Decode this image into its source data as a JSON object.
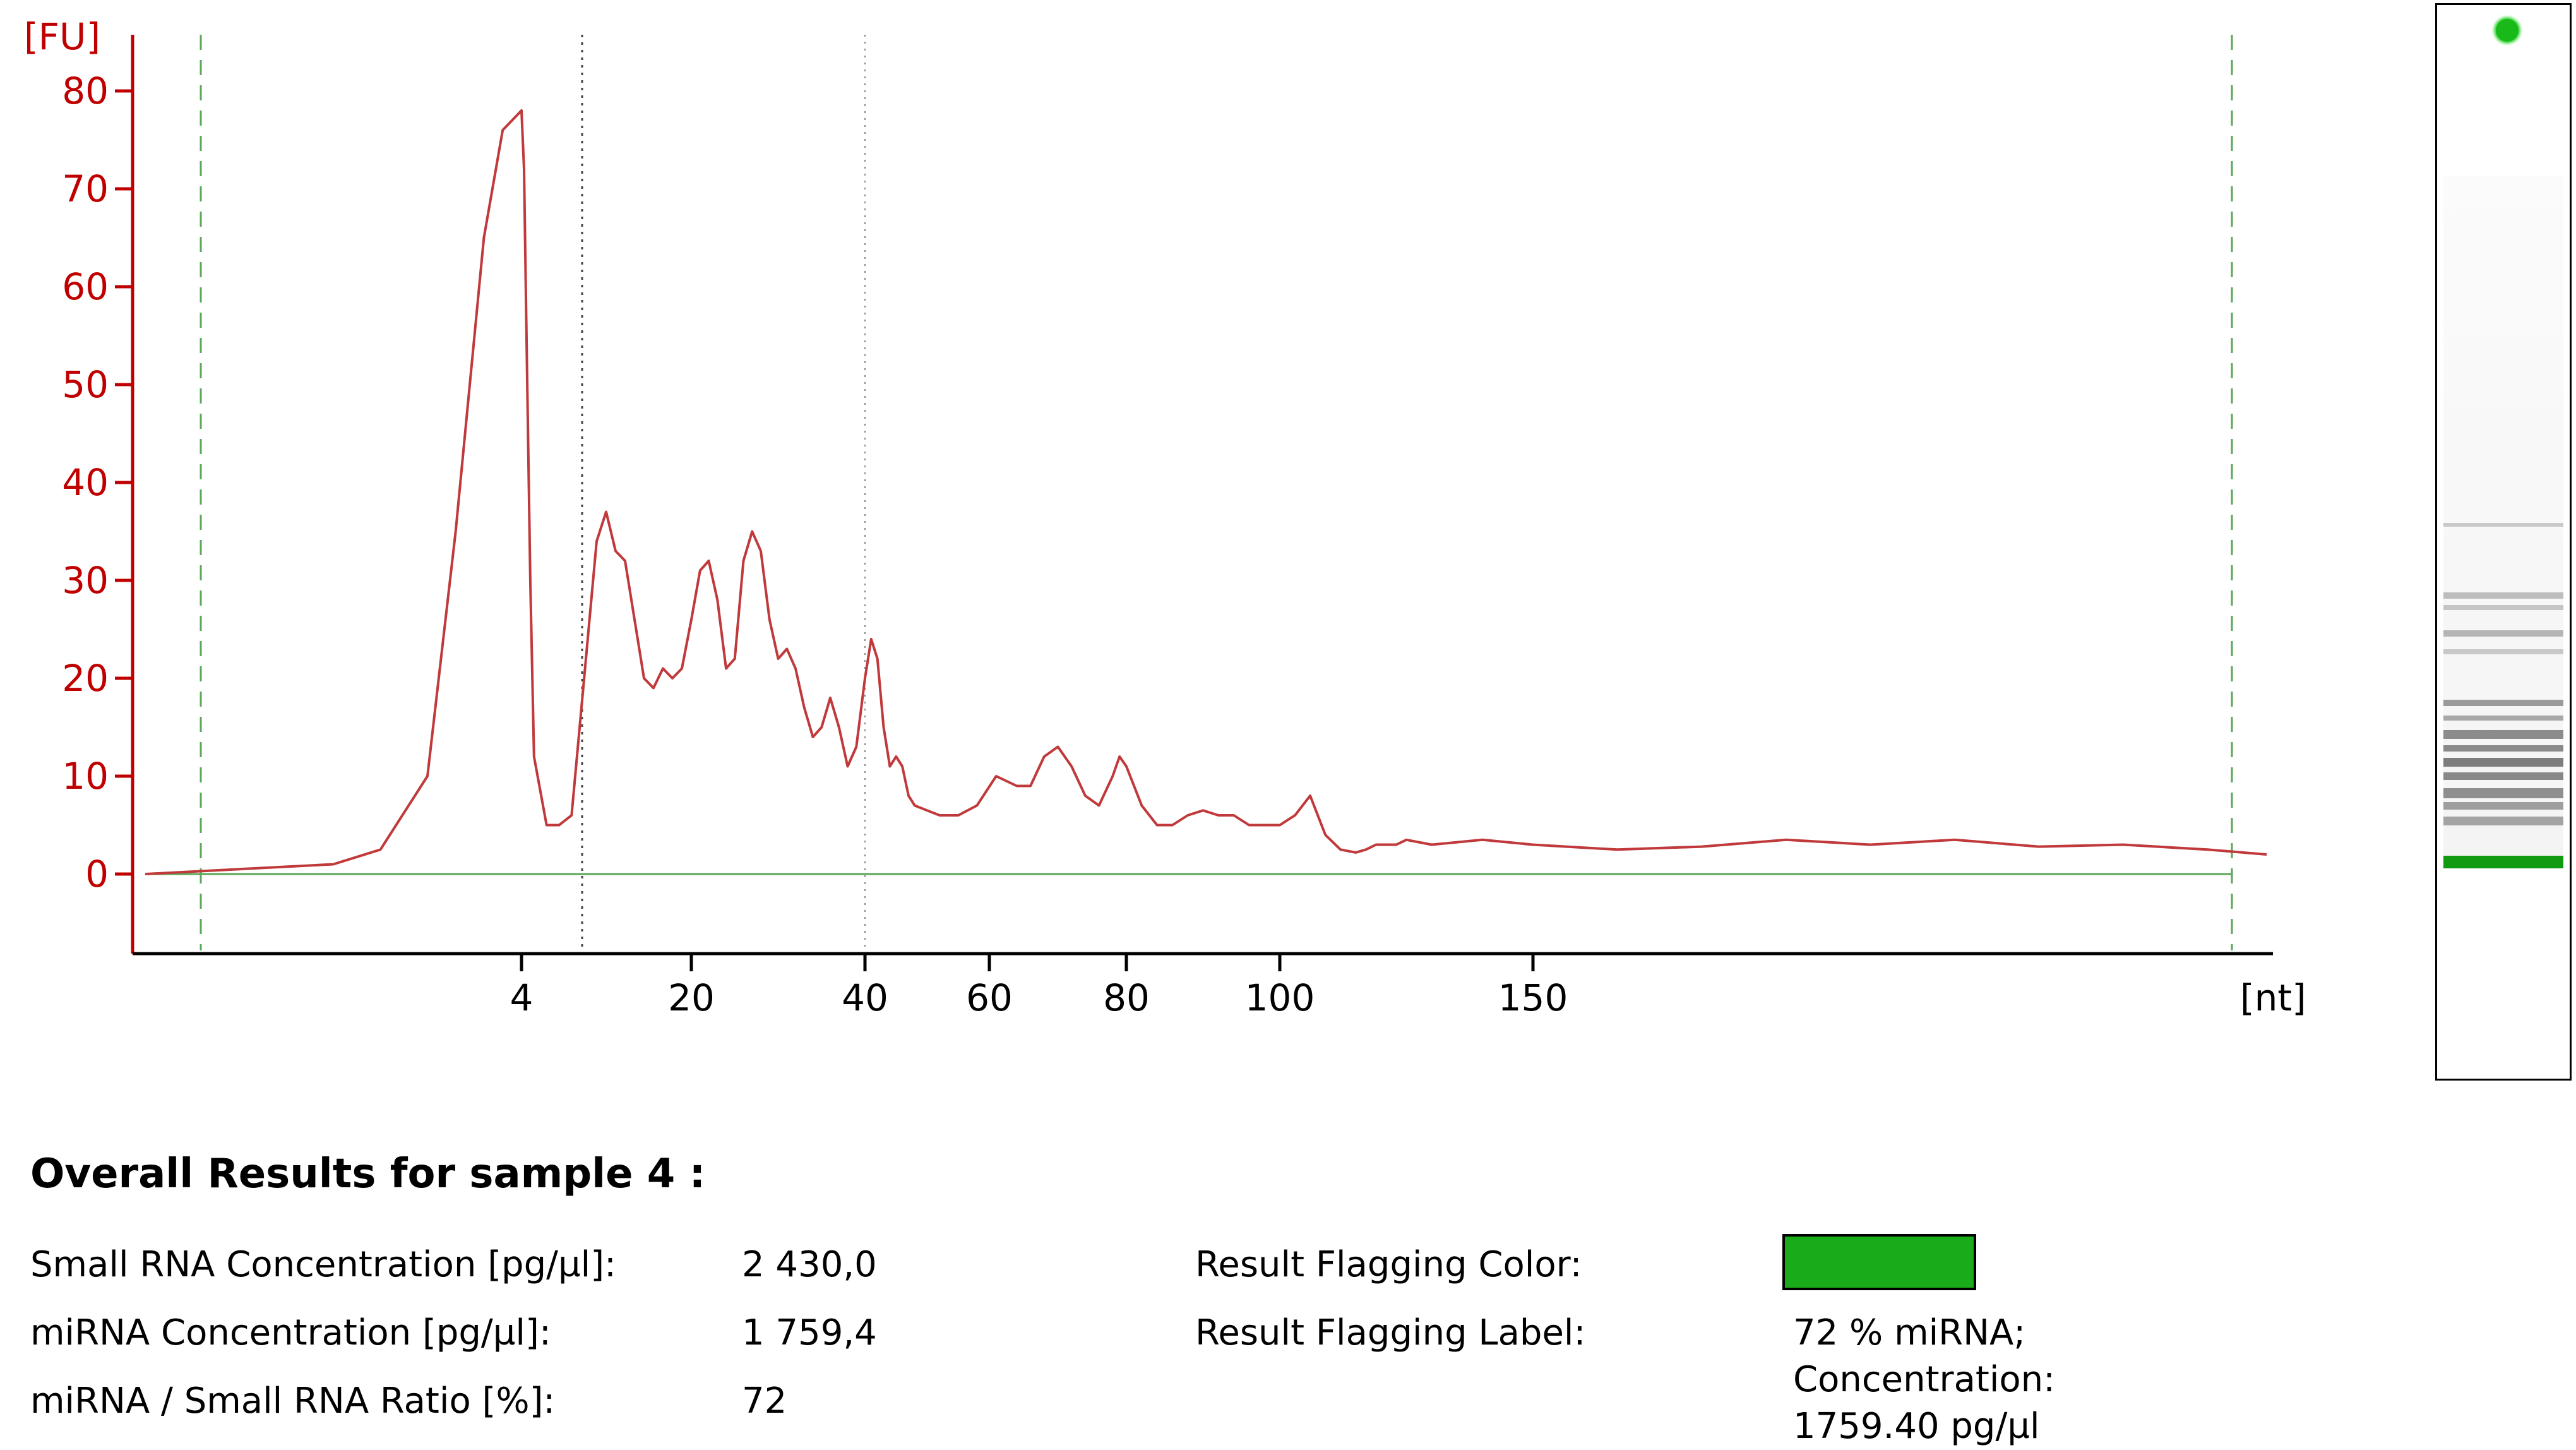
{
  "chart_data": {
    "type": "line",
    "ylabel": "[FU]",
    "xlabel": "[nt]",
    "ylim": [
      -8,
      84
    ],
    "y_ticks": [
      0,
      10,
      20,
      30,
      40,
      50,
      60,
      70,
      80
    ],
    "x_ticks": [
      "4",
      "20",
      "40",
      "60",
      "80",
      "100",
      "150"
    ],
    "grid": false,
    "series": [
      {
        "color": "#c0393b",
        "x": [
          0,
          2,
          2.5,
          3,
          3.3,
          3.6,
          3.8,
          4,
          4.2,
          4.4,
          4.7,
          5,
          6,
          7,
          8,
          9,
          10,
          11,
          12,
          13,
          14,
          15,
          16,
          17,
          18,
          19,
          20,
          21,
          22,
          23,
          24,
          25,
          26,
          27,
          28,
          29,
          30,
          31,
          32,
          33,
          34,
          35,
          36,
          37,
          38,
          39,
          40,
          41,
          42,
          43,
          44,
          45,
          46,
          47,
          48,
          50,
          52,
          55,
          58,
          61,
          64,
          66,
          68,
          70,
          72,
          74,
          76,
          78,
          79,
          80,
          82,
          84,
          86,
          88,
          90,
          92,
          94,
          96,
          98,
          100,
          103,
          106,
          109,
          112,
          115,
          117,
          119,
          121,
          123,
          125,
          130,
          140,
          150,
          160,
          170,
          180,
          190,
          200,
          210,
          220,
          230,
          237
        ],
        "values": [
          0,
          1,
          2.5,
          10,
          35,
          65,
          76,
          78,
          72,
          55,
          30,
          12,
          5,
          5,
          6,
          20,
          34,
          37,
          33,
          32,
          26,
          20,
          19,
          21,
          20,
          21,
          26,
          31,
          32,
          28,
          21,
          22,
          32,
          35,
          33,
          26,
          22,
          23,
          21,
          17,
          14,
          15,
          18,
          15,
          11,
          13,
          20,
          24,
          22,
          15,
          11,
          12,
          11,
          8,
          7,
          6.5,
          6,
          6,
          7,
          10,
          9,
          9,
          12,
          13,
          11,
          8,
          7,
          10,
          12,
          11,
          7,
          5,
          5,
          6,
          6.5,
          6,
          6,
          5,
          5,
          5,
          6,
          8,
          4,
          2.5,
          2.2,
          2.5,
          3,
          3,
          3,
          3.5,
          3,
          3.5,
          3,
          2.5,
          2.8,
          3.5,
          3,
          3.5,
          2.8,
          3,
          2.5,
          2
        ]
      }
    ],
    "reference_lines": [
      {
        "kind": "baseline",
        "y": 0,
        "color": "#5aa65a"
      },
      {
        "kind": "lower-marker",
        "color": "#5aa65a",
        "style": "dashed"
      },
      {
        "kind": "upper-marker",
        "color": "#5aa65a",
        "style": "dashed"
      },
      {
        "kind": "mirna-start",
        "color": "#404040",
        "style": "dotted"
      },
      {
        "kind": "mirna-end",
        "color": "#888888",
        "style": "dotted"
      }
    ],
    "colors": {
      "axis_y_text": "#c00000",
      "axis": "#000000",
      "trace": "#c0393b"
    }
  },
  "results": {
    "title": "Overall Results for sample 4  :",
    "rows": [
      {
        "label": "Small RNA Concentration [pg/µl]:",
        "value": "2 430,0"
      },
      {
        "label": "miRNA Concentration [pg/µl]:",
        "value": "1 759,4"
      },
      {
        "label": "miRNA / Small RNA Ratio [%]:",
        "value": "72"
      }
    ],
    "flag_color_label": "Result Flagging Color:",
    "flag_color": "#1aab1a",
    "flag_label_label": "Result Flagging Label:",
    "flag_label_lines": [
      "72 % miRNA;",
      "Concentration:",
      "1759.40 pg/µl"
    ]
  },
  "gel": {
    "marker_color": "#139a13",
    "indicator_color": "#19b919"
  }
}
